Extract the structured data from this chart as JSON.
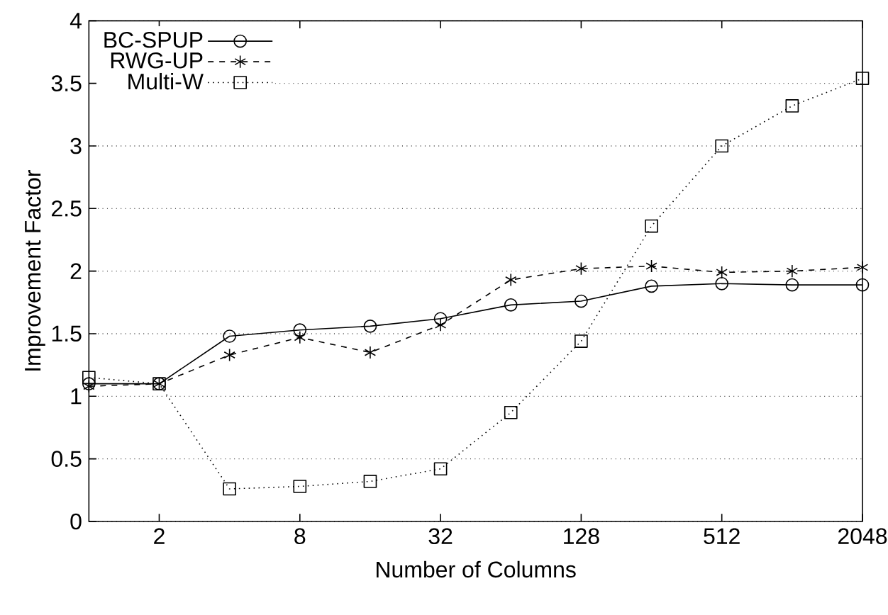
{
  "chart_data": {
    "type": "line",
    "xlabel": "Number of Columns",
    "ylabel": "Improvement Factor",
    "log": "x",
    "x": [
      1,
      2,
      4,
      8,
      16,
      32,
      64,
      128,
      256,
      512,
      1024,
      2048
    ],
    "xlim": [
      1,
      2048
    ],
    "xticks": [
      2,
      8,
      32,
      128,
      512,
      2048
    ],
    "ylim": [
      0,
      4
    ],
    "yticks": [
      0,
      0.5,
      1,
      1.5,
      2,
      2.5,
      3,
      3.5,
      4
    ],
    "grid": "y",
    "legend": "top left",
    "series": [
      {
        "name": "BC-SPUP",
        "color": "#000000",
        "marker": "circle",
        "line_style": "solid",
        "values": [
          1.1,
          1.1,
          1.48,
          1.53,
          1.56,
          1.62,
          1.73,
          1.76,
          1.88,
          1.9,
          1.89,
          1.89
        ]
      },
      {
        "name": "RWG-UP",
        "color": "#000000",
        "marker": "cross",
        "line_style": "dashed",
        "values": [
          1.08,
          1.1,
          1.33,
          1.47,
          1.35,
          1.57,
          1.93,
          2.02,
          2.04,
          1.99,
          2.0,
          2.03
        ]
      },
      {
        "name": "Multi-W",
        "color": "#000000",
        "marker": "square",
        "line_style": "dotted",
        "values": [
          1.15,
          1.1,
          0.26,
          0.28,
          0.32,
          0.42,
          0.87,
          1.44,
          2.36,
          3.0,
          3.32,
          3.54
        ]
      }
    ]
  }
}
